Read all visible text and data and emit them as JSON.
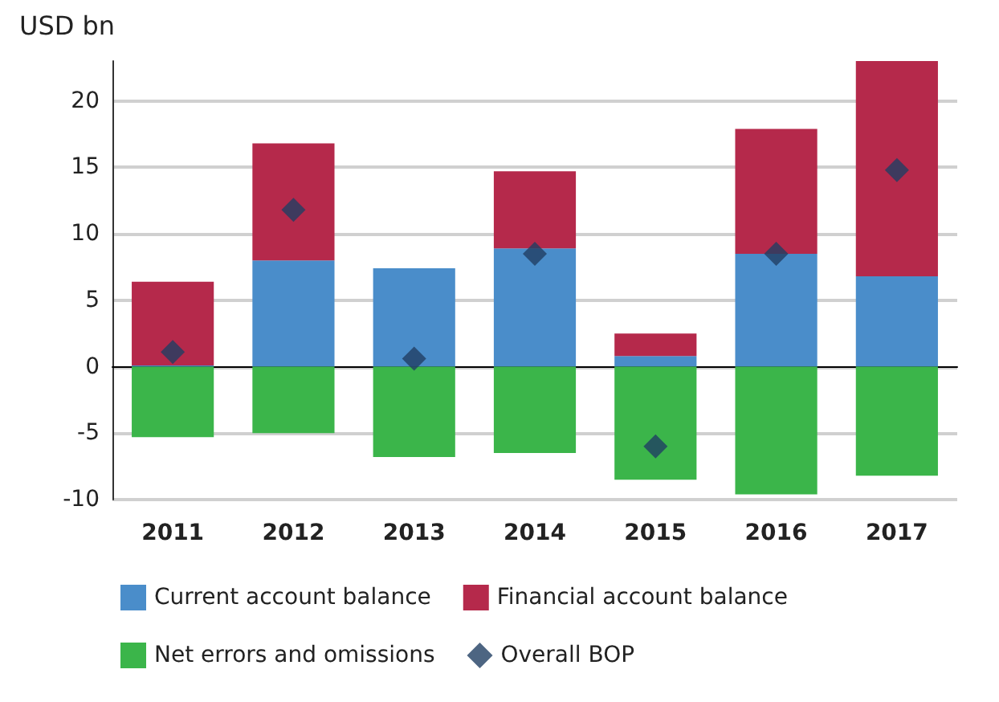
{
  "chart_data": {
    "type": "bar",
    "ylabel": "USD bn",
    "categories": [
      "2011",
      "2012",
      "2013",
      "2014",
      "2015",
      "2016",
      "2017"
    ],
    "stacked": true,
    "series": [
      {
        "name": "Current account balance",
        "color": "#4a8dca",
        "values": [
          0.1,
          8.0,
          7.4,
          8.9,
          0.8,
          8.5,
          6.8
        ]
      },
      {
        "name": "Financial account balance",
        "color": "#b5294b",
        "values": [
          6.3,
          8.8,
          0,
          5.8,
          1.7,
          9.4,
          16.2
        ]
      },
      {
        "name": "Net errors and omissions",
        "color": "#3bb54a",
        "values": [
          -5.3,
          -5.0,
          -6.8,
          -6.5,
          -8.5,
          -9.6,
          -8.2
        ]
      },
      {
        "name": "Overall BOP",
        "type": "scatter",
        "marker": "diamond",
        "color": "#213f63",
        "values": [
          1.1,
          11.8,
          0.6,
          8.5,
          -6.0,
          8.5,
          14.8
        ]
      }
    ],
    "ylim": [
      -10,
      23
    ],
    "yticks": [
      -10,
      -5,
      0,
      5,
      10,
      15,
      20
    ],
    "grid": "y",
    "legend": "bottom"
  }
}
